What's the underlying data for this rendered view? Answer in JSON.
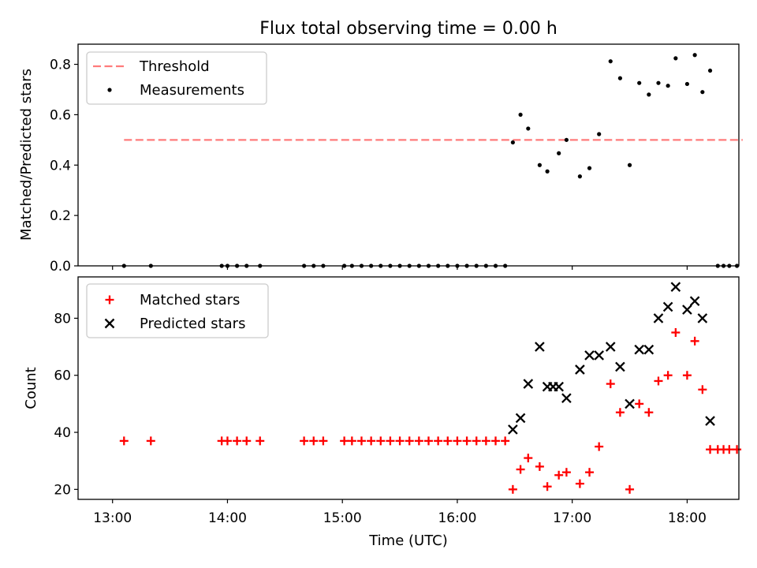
{
  "chart_data": [
    {
      "type": "scatter",
      "title": "Flux total observing time = 0.00 h",
      "ylabel": "Matched/Predicted stars",
      "xlabel": "",
      "xlim_minutes_since_13_00": [
        -18,
        327
      ],
      "ylim": [
        0,
        0.88
      ],
      "yticks": [
        0.0,
        0.2,
        0.4,
        0.6,
        0.8
      ],
      "ytick_labels": [
        "0.0",
        "0.2",
        "0.4",
        "0.6",
        "0.8"
      ],
      "legend_position": "top-left",
      "threshold": {
        "name": "Threshold",
        "value": 0.5,
        "x_range": [
          "13:06",
          "18:29"
        ],
        "color": "#ff7b7b",
        "style": "dashed"
      },
      "series": [
        {
          "name": "Measurements",
          "marker": "dot",
          "color": "#000000",
          "x": [
            "13:06",
            "13:20",
            "13:57",
            "14:00",
            "14:05",
            "14:10",
            "14:17",
            "14:40",
            "14:45",
            "14:50",
            "15:01",
            "15:05",
            "15:10",
            "15:15",
            "15:20",
            "15:25",
            "15:30",
            "15:35",
            "15:40",
            "15:45",
            "15:50",
            "15:55",
            "16:00",
            "16:05",
            "16:10",
            "16:15",
            "16:20",
            "16:25",
            "16:29",
            "16:33",
            "16:37",
            "16:43",
            "16:47",
            "16:53",
            "16:57",
            "17:04",
            "17:09",
            "17:14",
            "17:20",
            "17:25",
            "17:30",
            "17:35",
            "17:40",
            "17:45",
            "17:50",
            "17:54",
            "18:00",
            "18:04",
            "18:08",
            "18:12",
            "18:16",
            "18:19",
            "18:22",
            "18:26"
          ],
          "values": [
            0,
            0,
            0,
            0,
            0,
            0,
            0,
            0,
            0,
            0,
            0,
            0,
            0,
            0,
            0,
            0,
            0,
            0,
            0,
            0,
            0,
            0,
            0,
            0,
            0,
            0,
            0,
            0,
            0.49,
            0.6,
            0.545,
            0.4,
            0.375,
            0.447,
            0.5,
            0.355,
            0.388,
            0.523,
            0.812,
            0.745,
            0.4,
            0.726,
            0.68,
            0.726,
            0.715,
            0.824,
            0.722,
            0.837,
            0.69,
            0.775,
            0,
            0,
            0,
            0
          ]
        }
      ]
    },
    {
      "type": "scatter",
      "title": "",
      "xlabel": "Time (UTC)",
      "ylabel": "Count",
      "xlim_minutes_since_13_00": [
        -18,
        327
      ],
      "ylim": [
        16.5,
        94.5
      ],
      "xticks": [
        "13:00",
        "14:00",
        "15:00",
        "16:00",
        "17:00",
        "18:00"
      ],
      "yticks": [
        20,
        40,
        60,
        80
      ],
      "ytick_labels": [
        "20",
        "40",
        "60",
        "80"
      ],
      "legend_position": "top-left",
      "series": [
        {
          "name": "Matched stars",
          "marker": "plus",
          "color": "#ff0000",
          "x": [
            "13:06",
            "13:20",
            "13:57",
            "14:00",
            "14:05",
            "14:10",
            "14:17",
            "14:40",
            "14:45",
            "14:50",
            "15:01",
            "15:05",
            "15:10",
            "15:15",
            "15:20",
            "15:25",
            "15:30",
            "15:35",
            "15:40",
            "15:45",
            "15:50",
            "15:55",
            "16:00",
            "16:05",
            "16:10",
            "16:15",
            "16:20",
            "16:25",
            "16:29",
            "16:33",
            "16:37",
            "16:43",
            "16:47",
            "16:53",
            "16:57",
            "17:04",
            "17:09",
            "17:14",
            "17:20",
            "17:25",
            "17:30",
            "17:35",
            "17:40",
            "17:45",
            "17:50",
            "17:54",
            "18:00",
            "18:04",
            "18:08",
            "18:12",
            "18:16",
            "18:19",
            "18:22",
            "18:26"
          ],
          "values": [
            37,
            37,
            37,
            37,
            37,
            37,
            37,
            37,
            37,
            37,
            37,
            37,
            37,
            37,
            37,
            37,
            37,
            37,
            37,
            37,
            37,
            37,
            37,
            37,
            37,
            37,
            37,
            37,
            20,
            27,
            31,
            28,
            21,
            25,
            26,
            22,
            26,
            35,
            57,
            47,
            20,
            50,
            47,
            58,
            60,
            75,
            60,
            72,
            55,
            34,
            34,
            34,
            34,
            34
          ]
        },
        {
          "name": "Predicted stars",
          "marker": "x",
          "color": "#000000",
          "x": [
            "16:29",
            "16:33",
            "16:37",
            "16:43",
            "16:47",
            "16:50",
            "16:53",
            "16:57",
            "17:04",
            "17:09",
            "17:14",
            "17:20",
            "17:25",
            "17:30",
            "17:35",
            "17:40",
            "17:45",
            "17:50",
            "17:54",
            "18:00",
            "18:04",
            "18:08",
            "18:12"
          ],
          "values": [
            41,
            45,
            57,
            70,
            56,
            56,
            56,
            52,
            62,
            67,
            67,
            70,
            63,
            50,
            69,
            69,
            80,
            84,
            91,
            83,
            86,
            80,
            44
          ]
        }
      ]
    }
  ]
}
